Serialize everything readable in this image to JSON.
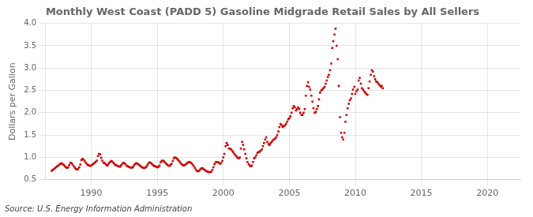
{
  "chart_data": {
    "type": "scatter",
    "title": "Monthly West Coast (PADD 5) Gasoline Midgrade Retail Sales by All Sellers",
    "ylabel": "Dollars per Gallon",
    "annotations": [
      "Source: U.S. Energy Information Administration"
    ],
    "color": "#cc0000",
    "marker": "square",
    "grid": true,
    "xlim": [
      1986.5,
      2022.5
    ],
    "ylim": [
      0.5,
      4.0
    ],
    "xticks": [
      1990,
      1995,
      2000,
      2005,
      2010,
      2015,
      2020
    ],
    "yticks": [
      0.5,
      {
        "value": 1.0,
        "label": "1.0"
      },
      1.5,
      {
        "value": 2.0,
        "label": "2.0"
      },
      2.5,
      {
        "value": 3.0,
        "label": "3.0"
      },
      3.5,
      {
        "value": 4.0,
        "label": "4.0"
      }
    ],
    "x": [
      1987.0,
      1987.08,
      1987.17,
      1987.25,
      1987.33,
      1987.42,
      1987.5,
      1987.58,
      1987.67,
      1987.75,
      1987.83,
      1987.92,
      1988.0,
      1988.08,
      1988.17,
      1988.25,
      1988.33,
      1988.42,
      1988.5,
      1988.58,
      1988.67,
      1988.75,
      1988.83,
      1988.92,
      1989.0,
      1989.08,
      1989.17,
      1989.25,
      1989.33,
      1989.42,
      1989.5,
      1989.58,
      1989.67,
      1989.75,
      1989.83,
      1989.92,
      1990.0,
      1990.08,
      1990.17,
      1990.25,
      1990.33,
      1990.42,
      1990.5,
      1990.58,
      1990.67,
      1990.75,
      1990.83,
      1990.92,
      1991.0,
      1991.08,
      1991.17,
      1991.25,
      1991.33,
      1991.42,
      1991.5,
      1991.58,
      1991.67,
      1991.75,
      1991.83,
      1991.92,
      1992.0,
      1992.08,
      1992.17,
      1992.25,
      1992.33,
      1992.42,
      1992.5,
      1992.58,
      1992.67,
      1992.75,
      1992.83,
      1992.92,
      1993.0,
      1993.08,
      1993.17,
      1993.25,
      1993.33,
      1993.42,
      1993.5,
      1993.58,
      1993.67,
      1993.75,
      1993.83,
      1993.92,
      1994.0,
      1994.08,
      1994.17,
      1994.25,
      1994.33,
      1994.42,
      1994.5,
      1994.58,
      1994.67,
      1994.75,
      1994.83,
      1994.92,
      1995.0,
      1995.08,
      1995.17,
      1995.25,
      1995.33,
      1995.42,
      1995.5,
      1995.58,
      1995.67,
      1995.75,
      1995.83,
      1995.92,
      1996.0,
      1996.08,
      1996.17,
      1996.25,
      1996.33,
      1996.42,
      1996.5,
      1996.58,
      1996.67,
      1996.75,
      1996.83,
      1996.92,
      1997.0,
      1997.08,
      1997.17,
      1997.25,
      1997.33,
      1997.42,
      1997.5,
      1997.58,
      1997.67,
      1997.75,
      1997.83,
      1997.92,
      1998.0,
      1998.08,
      1998.17,
      1998.25,
      1998.33,
      1998.42,
      1998.5,
      1998.58,
      1998.67,
      1998.75,
      1998.83,
      1998.92,
      1999.0,
      1999.08,
      1999.17,
      1999.25,
      1999.33,
      1999.42,
      1999.5,
      1999.58,
      1999.67,
      1999.75,
      1999.83,
      1999.92,
      2000.0,
      2000.08,
      2000.17,
      2000.25,
      2000.33,
      2000.42,
      2000.5,
      2000.58,
      2000.67,
      2000.75,
      2000.83,
      2000.92,
      2001.0,
      2001.08,
      2001.17,
      2001.25,
      2001.33,
      2001.42,
      2001.5,
      2001.58,
      2001.67,
      2001.75,
      2001.83,
      2001.92,
      2002.0,
      2002.08,
      2002.17,
      2002.25,
      2002.33,
      2002.42,
      2002.5,
      2002.58,
      2002.67,
      2002.75,
      2002.83,
      2002.92,
      2003.0,
      2003.08,
      2003.17,
      2003.25,
      2003.33,
      2003.42,
      2003.5,
      2003.58,
      2003.67,
      2003.75,
      2003.83,
      2003.92,
      2004.0,
      2004.08,
      2004.17,
      2004.25,
      2004.33,
      2004.42,
      2004.5,
      2004.58,
      2004.67,
      2004.75,
      2004.83,
      2004.92,
      2005.0,
      2005.08,
      2005.17,
      2005.25,
      2005.33,
      2005.42,
      2005.5,
      2005.58,
      2005.67,
      2005.75,
      2005.83,
      2005.92,
      2006.0,
      2006.08,
      2006.17,
      2006.25,
      2006.33,
      2006.42,
      2006.5,
      2006.58,
      2006.67,
      2006.75,
      2006.83,
      2006.92,
      2007.0,
      2007.08,
      2007.17,
      2007.25,
      2007.33,
      2007.42,
      2007.5,
      2007.58,
      2007.67,
      2007.75,
      2007.83,
      2007.92,
      2008.0,
      2008.08,
      2008.17,
      2008.25,
      2008.33,
      2008.42,
      2008.5,
      2008.58,
      2008.67,
      2008.75,
      2008.83,
      2008.92,
      2009.0,
      2009.08,
      2009.17,
      2009.25,
      2009.33,
      2009.42,
      2009.5,
      2009.58,
      2009.67,
      2009.75,
      2009.83,
      2009.92,
      2010.0,
      2010.08,
      2010.17,
      2010.25,
      2010.33,
      2010.42,
      2010.5,
      2010.58,
      2010.67,
      2010.75,
      2010.83,
      2010.92,
      2011.0,
      2011.08,
      2011.17,
      2011.25,
      2011.33,
      2011.42,
      2011.5,
      2011.58,
      2011.67,
      2011.75,
      2011.83,
      2011.92,
      2012.0,
      2012.08
    ],
    "values": [
      0.7,
      0.72,
      0.74,
      0.76,
      0.78,
      0.8,
      0.82,
      0.84,
      0.86,
      0.87,
      0.85,
      0.83,
      0.8,
      0.78,
      0.76,
      0.78,
      0.83,
      0.88,
      0.87,
      0.84,
      0.8,
      0.77,
      0.74,
      0.73,
      0.74,
      0.78,
      0.84,
      0.94,
      0.97,
      0.95,
      0.92,
      0.88,
      0.85,
      0.83,
      0.82,
      0.81,
      0.82,
      0.84,
      0.86,
      0.88,
      0.9,
      0.93,
      1.03,
      1.08,
      1.07,
      0.99,
      0.93,
      0.88,
      0.88,
      0.85,
      0.82,
      0.83,
      0.87,
      0.9,
      0.92,
      0.91,
      0.88,
      0.85,
      0.83,
      0.82,
      0.81,
      0.8,
      0.79,
      0.82,
      0.85,
      0.88,
      0.87,
      0.85,
      0.82,
      0.8,
      0.79,
      0.78,
      0.77,
      0.77,
      0.79,
      0.83,
      0.86,
      0.87,
      0.86,
      0.84,
      0.82,
      0.8,
      0.78,
      0.77,
      0.76,
      0.77,
      0.79,
      0.83,
      0.87,
      0.89,
      0.88,
      0.86,
      0.83,
      0.81,
      0.8,
      0.79,
      0.78,
      0.79,
      0.82,
      0.89,
      0.92,
      0.93,
      0.91,
      0.89,
      0.86,
      0.84,
      0.82,
      0.81,
      0.83,
      0.86,
      0.92,
      0.98,
      1.0,
      0.99,
      0.97,
      0.94,
      0.91,
      0.88,
      0.85,
      0.83,
      0.82,
      0.83,
      0.85,
      0.87,
      0.89,
      0.9,
      0.89,
      0.87,
      0.84,
      0.81,
      0.77,
      0.73,
      0.7,
      0.69,
      0.7,
      0.73,
      0.75,
      0.76,
      0.74,
      0.72,
      0.7,
      0.69,
      0.68,
      0.67,
      0.67,
      0.68,
      0.72,
      0.78,
      0.85,
      0.89,
      0.9,
      0.9,
      0.88,
      0.86,
      0.87,
      0.92,
      1.0,
      1.08,
      1.25,
      1.32,
      1.28,
      1.2,
      1.2,
      1.18,
      1.15,
      1.12,
      1.08,
      1.05,
      1.02,
      0.99,
      0.98,
      1.0,
      1.2,
      1.35,
      1.28,
      1.18,
      1.08,
      0.98,
      0.9,
      0.85,
      0.82,
      0.8,
      0.82,
      0.9,
      0.98,
      1.0,
      1.05,
      1.1,
      1.12,
      1.13,
      1.15,
      1.18,
      1.25,
      1.32,
      1.4,
      1.45,
      1.35,
      1.3,
      1.28,
      1.32,
      1.35,
      1.38,
      1.4,
      1.42,
      1.45,
      1.5,
      1.58,
      1.68,
      1.75,
      1.72,
      1.68,
      1.7,
      1.72,
      1.75,
      1.8,
      1.85,
      1.88,
      1.92,
      2.0,
      2.1,
      2.15,
      2.12,
      2.05,
      2.08,
      2.12,
      2.08,
      2.0,
      1.95,
      1.95,
      2.0,
      2.08,
      2.38,
      2.6,
      2.68,
      2.58,
      2.52,
      2.38,
      2.25,
      2.1,
      2.0,
      2.02,
      2.08,
      2.15,
      2.3,
      2.45,
      2.5,
      2.52,
      2.55,
      2.58,
      2.65,
      2.72,
      2.8,
      2.85,
      2.95,
      3.1,
      3.45,
      3.6,
      3.75,
      3.88,
      3.5,
      3.2,
      2.6,
      1.9,
      1.55,
      1.45,
      1.4,
      1.55,
      1.8,
      1.95,
      2.1,
      2.2,
      2.28,
      2.32,
      2.42,
      2.52,
      2.58,
      2.42,
      2.48,
      2.52,
      2.72,
      2.78,
      2.65,
      2.55,
      2.52,
      2.48,
      2.45,
      2.42,
      2.4,
      2.55,
      2.7,
      2.85,
      2.95,
      2.92,
      2.82,
      2.75,
      2.7,
      2.68,
      2.65,
      2.62,
      2.58,
      2.6,
      2.55
    ]
  }
}
